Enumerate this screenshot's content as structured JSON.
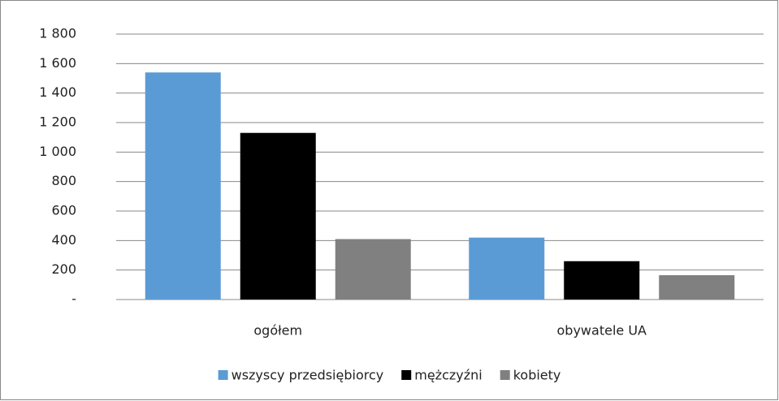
{
  "chart_data": {
    "type": "bar",
    "categories": [
      "ogółem",
      "obywatele UA"
    ],
    "series": [
      {
        "name": "wszyscy przedsiębiorcy",
        "color": "#5b9bd5",
        "values": [
          1540,
          420
        ]
      },
      {
        "name": "mężczyźni",
        "color": "#000000",
        "values": [
          1130,
          260
        ]
      },
      {
        "name": "kobiety",
        "color": "#808080",
        "values": [
          410,
          165
        ]
      }
    ],
    "ylim": [
      0,
      1800
    ],
    "yticks": [
      {
        "value": 0,
        "label": "-"
      },
      200,
      400,
      600,
      800,
      {
        "value": 1000,
        "label": "1 000"
      },
      {
        "value": 1200,
        "label": "1 200"
      },
      {
        "value": 1400,
        "label": "1 400"
      },
      {
        "value": 1600,
        "label": "1 600"
      },
      {
        "value": 1800,
        "label": "1 800"
      }
    ],
    "grid": true,
    "legend": "bottom"
  }
}
